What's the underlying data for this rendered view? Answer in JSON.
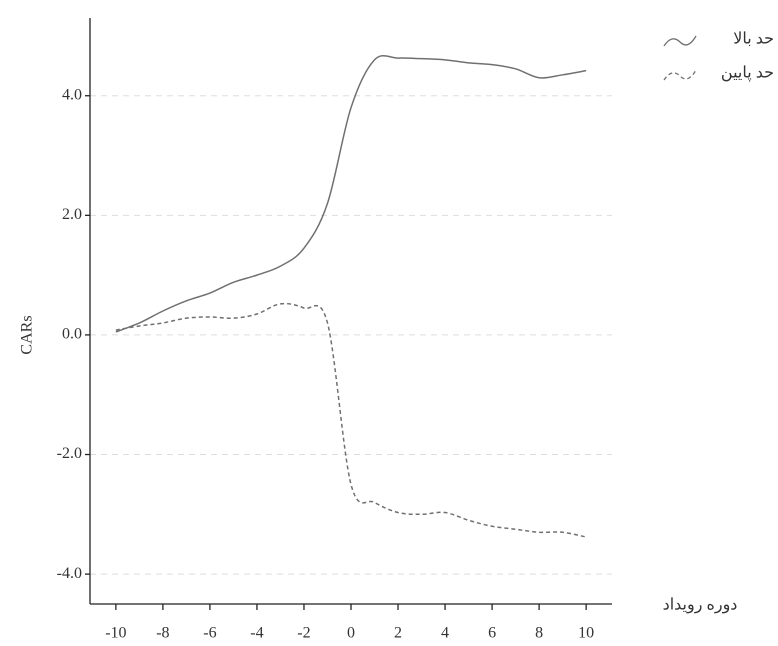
{
  "chart_data": {
    "type": "line",
    "x_label": "دوره رویداد",
    "y_label": "CARs",
    "x": [
      -10,
      -9,
      -8,
      -7,
      -6,
      -5,
      -4,
      -3,
      -2,
      -1,
      0,
      1,
      2,
      3,
      4,
      5,
      6,
      7,
      8,
      9,
      10
    ],
    "series": [
      {
        "name": "حد بالا",
        "color": "#707070",
        "dash": "solid",
        "values": [
          0.05,
          0.2,
          0.4,
          0.57,
          0.7,
          0.88,
          1.0,
          1.15,
          1.45,
          2.2,
          3.8,
          4.6,
          4.63,
          4.62,
          4.6,
          4.55,
          4.52,
          4.45,
          4.3,
          4.35,
          4.42
        ]
      },
      {
        "name": "حد پایین",
        "color": "#707070",
        "dash": "dashed",
        "values": [
          0.08,
          0.15,
          0.2,
          0.28,
          0.3,
          0.28,
          0.35,
          0.52,
          0.45,
          0.2,
          -2.5,
          -2.8,
          -2.97,
          -3.0,
          -2.97,
          -3.1,
          -3.2,
          -3.25,
          -3.3,
          -3.3,
          -3.38
        ]
      }
    ],
    "xlim": [
      -11.1,
      11.1
    ],
    "xticks": [
      -10,
      -8,
      -6,
      -4,
      -2,
      0,
      2,
      4,
      6,
      8,
      10
    ],
    "ylim": [
      -4.5,
      5.3
    ],
    "yticks": [
      {
        "value": -4,
        "label": "-4.0"
      },
      {
        "value": -2,
        "label": "-2.0"
      },
      {
        "value": 0,
        "label": "0.0"
      },
      {
        "value": 2,
        "label": "2.0"
      },
      {
        "value": 4,
        "label": "4.0"
      }
    ],
    "grid": true,
    "legend": "top-right"
  }
}
